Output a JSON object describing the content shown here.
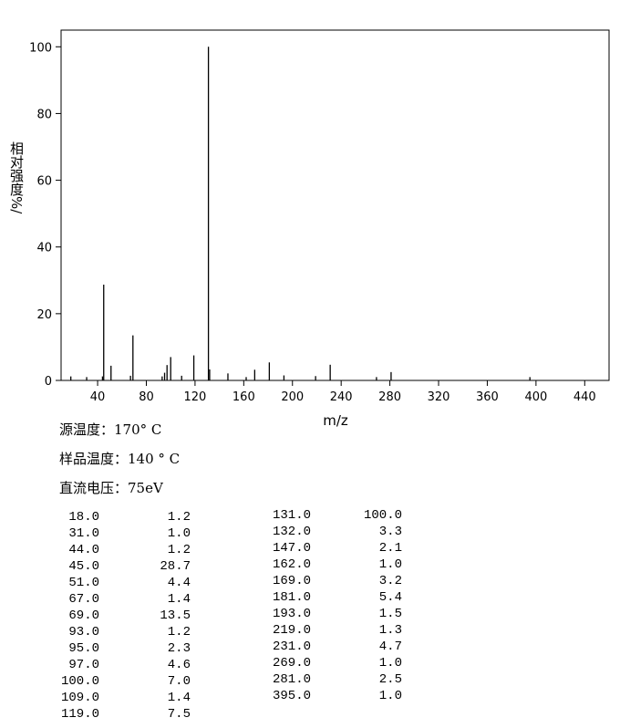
{
  "chart_data": {
    "type": "stem",
    "ylabel": "相对强度%/",
    "xlabel": "m/z",
    "x": [
      18,
      31,
      44,
      45,
      51,
      67,
      69,
      93,
      95,
      97,
      100,
      109,
      119,
      131,
      132,
      147,
      162,
      169,
      181,
      193,
      219,
      231,
      269,
      281,
      395
    ],
    "x_labels": [
      "18.0",
      "31.0",
      "44.0",
      "45.0",
      "51.0",
      "67.0",
      "69.0",
      "93.0",
      "95.0",
      "97.0",
      "100.0",
      "109.0",
      "119.0",
      "131.0",
      "132.0",
      "147.0",
      "162.0",
      "169.0",
      "181.0",
      "193.0",
      "219.0",
      "231.0",
      "269.0",
      "281.0",
      "395.0"
    ],
    "values": [
      1.2,
      1,
      1.2,
      28.7,
      4.4,
      1.4,
      13.5,
      1.2,
      2.3,
      4.6,
      7,
      1.4,
      7.5,
      100,
      3.3,
      2.1,
      1,
      3.2,
      5.4,
      1.5,
      1.3,
      4.7,
      1,
      2.5,
      1
    ],
    "value_labels": [
      "1.2",
      "1.0",
      "1.2",
      "28.7",
      "4.4",
      "1.4",
      "13.5",
      "1.2",
      "2.3",
      "4.6",
      "7.0",
      "1.4",
      "7.5",
      "100.0",
      "3.3",
      "2.1",
      "1.0",
      "3.2",
      "5.4",
      "1.5",
      "1.3",
      "4.7",
      "1.0",
      "2.5",
      "1.0"
    ],
    "color": "#000000",
    "xlim": [
      10,
      460
    ],
    "xticks": [
      40,
      80,
      120,
      160,
      200,
      240,
      280,
      320,
      360,
      400,
      440
    ],
    "ylim": [
      0,
      105
    ],
    "yticks": [
      0,
      20,
      40,
      60,
      80,
      100
    ],
    "notes": [
      "源温度：170° C",
      "样品温度：140 ° C",
      "直流电压：75eV"
    ]
  }
}
